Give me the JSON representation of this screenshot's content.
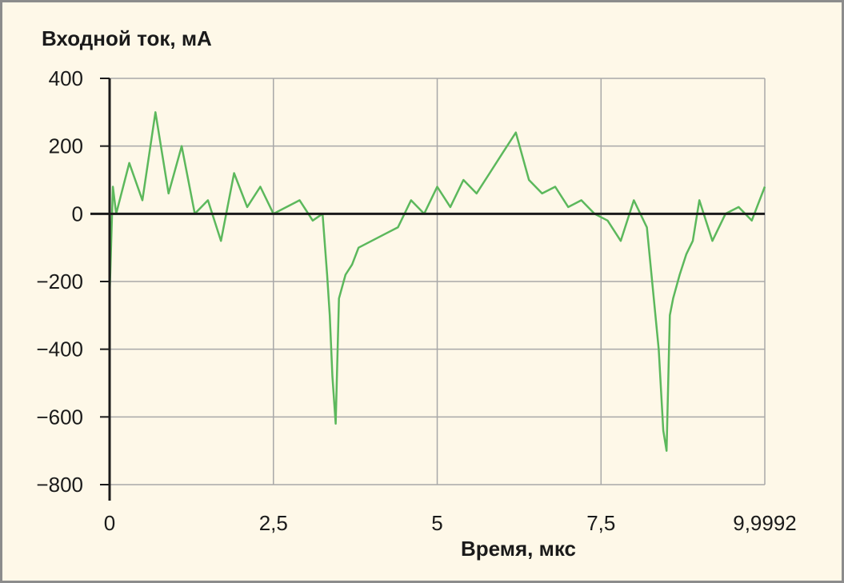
{
  "chart_data": {
    "type": "line",
    "title": "",
    "ylabel": "Входной ток, мА",
    "xlabel": "Время, мкс",
    "xlim": [
      0,
      9.9992
    ],
    "ylim": [
      -800,
      400
    ],
    "x_ticks": [
      0,
      2.5,
      5,
      7.5,
      9.9992
    ],
    "x_tick_labels": [
      "0",
      "2,5",
      "5",
      "7,5",
      "9,9992"
    ],
    "y_ticks": [
      400,
      200,
      0,
      -200,
      -400,
      -600,
      -800
    ],
    "y_tick_labels": [
      "400",
      "200",
      "0",
      "−200",
      "−400",
      "−600",
      "−800"
    ],
    "grid": true,
    "legend": "none",
    "series": [
      {
        "color": "#5cb85c",
        "x": [
          0,
          0.05,
          0.1,
          0.3,
          0.5,
          0.7,
          0.9,
          1.1,
          1.3,
          1.5,
          1.7,
          1.9,
          2.1,
          2.3,
          2.5,
          2.7,
          2.9,
          3.1,
          3.25,
          3.32,
          3.36,
          3.4,
          3.45,
          3.5,
          3.6,
          3.7,
          3.8,
          4.0,
          4.2,
          4.4,
          4.6,
          4.8,
          5.0,
          5.2,
          5.4,
          5.6,
          5.8,
          6.0,
          6.2,
          6.4,
          6.6,
          6.8,
          7.0,
          7.2,
          7.4,
          7.6,
          7.8,
          8.0,
          8.2,
          8.38,
          8.45,
          8.5,
          8.55,
          8.6,
          8.7,
          8.8,
          8.9,
          9.0,
          9.2,
          9.4,
          9.6,
          9.8,
          9.9992
        ],
        "y": [
          -240,
          80,
          0,
          150,
          40,
          300,
          60,
          200,
          0,
          40,
          -80,
          120,
          20,
          80,
          0,
          20,
          40,
          -20,
          0,
          -180,
          -300,
          -480,
          -620,
          -250,
          -180,
          -150,
          -100,
          -80,
          -60,
          -40,
          40,
          0,
          80,
          20,
          100,
          60,
          120,
          180,
          240,
          100,
          60,
          80,
          20,
          40,
          0,
          -20,
          -80,
          40,
          -40,
          -400,
          -640,
          -700,
          -300,
          -250,
          -180,
          -120,
          -80,
          40,
          -80,
          0,
          20,
          -20,
          80
        ]
      }
    ]
  }
}
